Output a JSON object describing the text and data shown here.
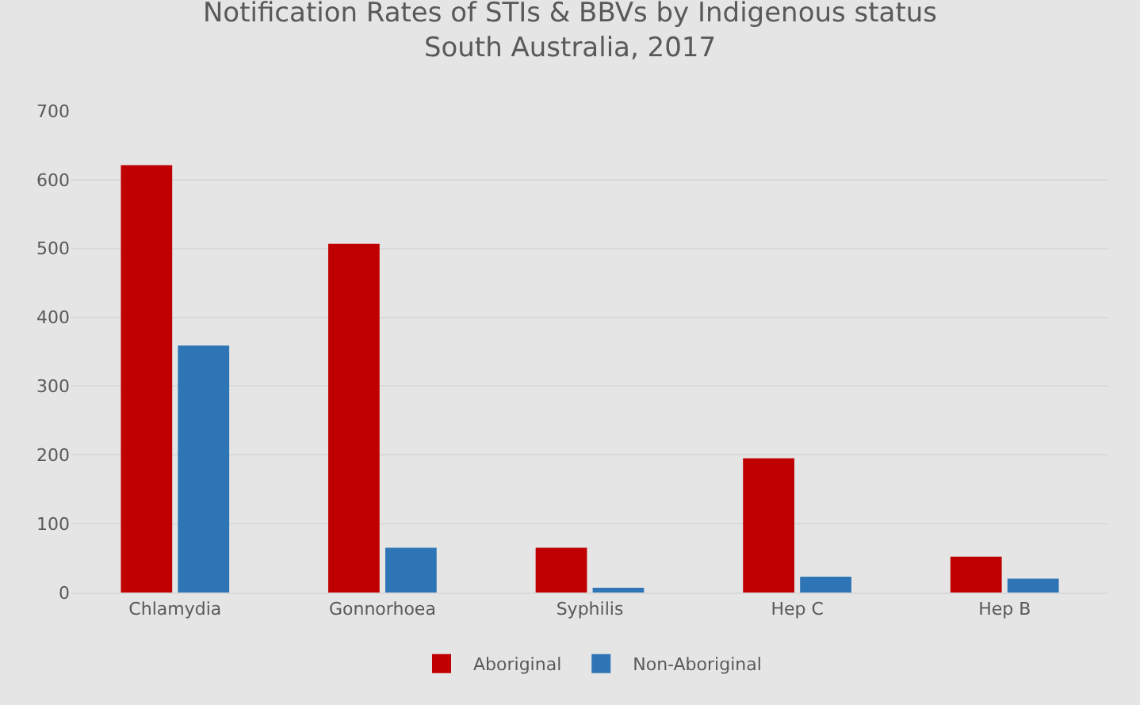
{
  "chart_data": {
    "type": "bar",
    "title": "Notification Rates of STIs & BBVs by Indigenous status\nSouth Australia, 2017",
    "categories": [
      "Chlamydia",
      "Gonnorhoea",
      "Syphilis",
      "Hep C",
      "Hep B"
    ],
    "series": [
      {
        "name": "Aboriginal",
        "color": "#c00000",
        "values": [
          621,
          507,
          65,
          195,
          52
        ]
      },
      {
        "name": "Non-Aboriginal",
        "color": "#2e75b6",
        "values": [
          359,
          65,
          7,
          23,
          20
        ]
      }
    ],
    "ylim": [
      0,
      700
    ],
    "yticks": [
      0,
      100,
      200,
      300,
      400,
      500,
      600,
      700
    ],
    "grid": "y",
    "legend": "bottom"
  }
}
